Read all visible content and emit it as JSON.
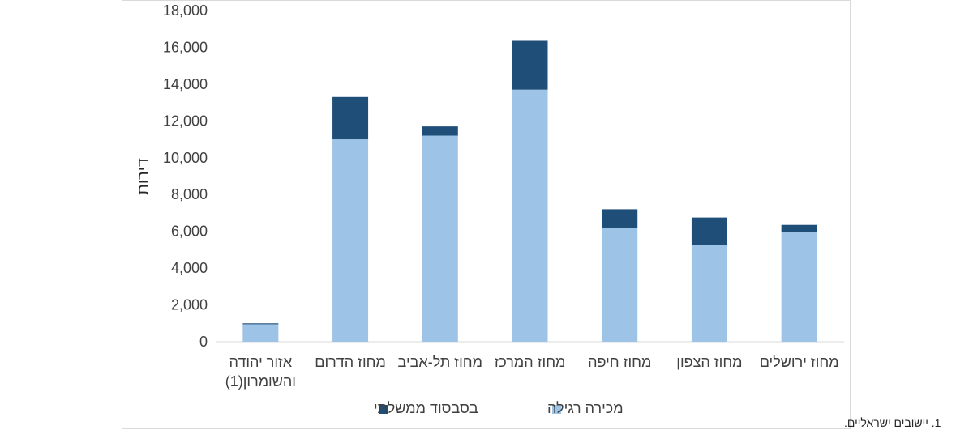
{
  "chart_data": {
    "type": "bar",
    "stacked": true,
    "categories": [
      "מחוז ירושלים",
      "מחוז הצפון",
      "מחוז חיפה",
      "מחוז המרכז",
      "מחוז תל-אביב",
      "מחוז הדרום",
      "אזור יהודה\nוהשומרון(1)"
    ],
    "category_lines": [
      [
        "מחוז ירושלים"
      ],
      [
        "מחוז הצפון"
      ],
      [
        "מחוז חיפה"
      ],
      [
        "מחוז המרכז"
      ],
      [
        "מחוז תל-אביב"
      ],
      [
        "מחוז הדרום"
      ],
      [
        "אזור יהודה",
        "והשומרון(1)"
      ]
    ],
    "series": [
      {
        "name": "מכירה רגילה",
        "color": "#9dc3e6",
        "values": [
          5950,
          5250,
          6200,
          13700,
          11200,
          11000,
          950
        ]
      },
      {
        "name": "בסבסוד ממשלתי",
        "color": "#1f4e79",
        "values": [
          400,
          1500,
          1000,
          2650,
          500,
          2300,
          50
        ]
      }
    ],
    "ylabel": "דירות",
    "ylim": [
      0,
      18000
    ],
    "yticks": [
      0,
      2000,
      4000,
      6000,
      8000,
      10000,
      12000,
      14000,
      16000,
      18000
    ],
    "ytick_labels": [
      "0",
      "2,000",
      "4,000",
      "6,000",
      "8,000",
      "10,000",
      "12,000",
      "14,000",
      "16,000",
      "18,000"
    ],
    "grid": false,
    "legend_position": "bottom",
    "footnote": "1. יישובים ישראליים."
  }
}
